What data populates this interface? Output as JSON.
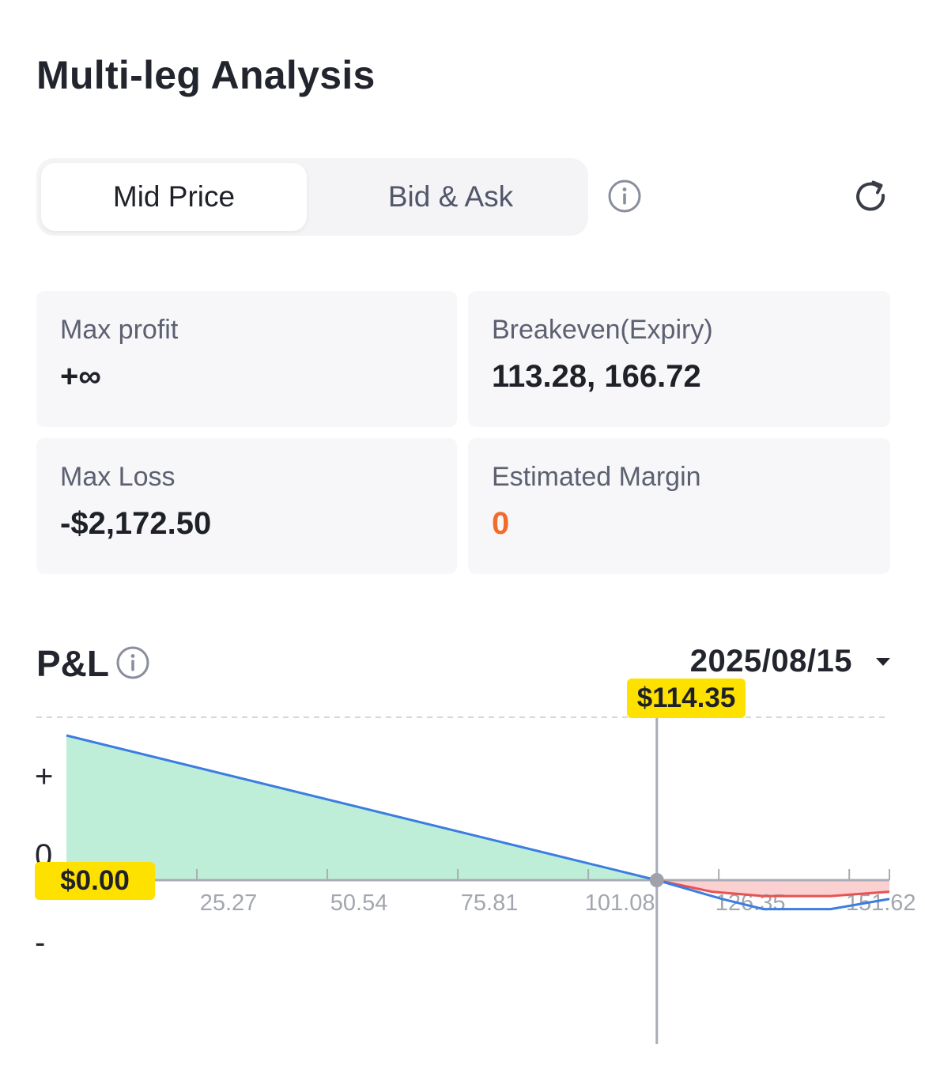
{
  "page_title": "Multi-leg Analysis",
  "price_mode": {
    "options": [
      "Mid Price",
      "Bid & Ask"
    ],
    "selected": "Mid Price"
  },
  "icons": {
    "info": "info-icon",
    "refresh": "refresh-icon",
    "dropdown": "caret-down-icon"
  },
  "stats": {
    "max_profit": {
      "label": "Max profit",
      "value": "+∞"
    },
    "breakeven": {
      "label": "Breakeven(Expiry)",
      "value": "113.28, 166.72"
    },
    "max_loss": {
      "label": "Max Loss",
      "value": "-$2,172.50"
    },
    "estimated_margin": {
      "label": "Estimated Margin",
      "value": "0"
    }
  },
  "colors": {
    "accent_orange": "#f26b2a",
    "badge_yellow": "#ffe100",
    "profit_fill": "#bfeed8",
    "loss_fill": "#fbd0d0",
    "expiry_line": "#3b7de0",
    "today_line": "#e55353"
  },
  "pnl": {
    "title": "P&L",
    "date": "2025/08/15",
    "current_price_badge": "$114.35",
    "pnl_badge": "$0.00",
    "y_labels": {
      "plus": "+",
      "zero": "0",
      "minus": "-"
    }
  },
  "chart_data": {
    "type": "line",
    "title": "P&L",
    "x_ticks": [
      "25.27",
      "50.54",
      "75.81",
      "101.08",
      "126.35",
      "151.62"
    ],
    "x_tick_values": [
      25.27,
      50.54,
      75.81,
      101.08,
      126.35,
      151.62
    ],
    "xlim": [
      0,
      159.4
    ],
    "current_price": 114.35,
    "series": [
      {
        "key": "expiry",
        "x": [
          0,
          114.35,
          127,
          135,
          148,
          159.4
        ],
        "y": [
          1.0,
          0,
          -0.13,
          -0.2,
          -0.2,
          -0.13
        ]
      },
      {
        "key": "today",
        "x": [
          114.35,
          125,
          135,
          148,
          159.4
        ],
        "y": [
          0,
          -0.08,
          -0.11,
          -0.11,
          -0.08
        ]
      }
    ]
  }
}
